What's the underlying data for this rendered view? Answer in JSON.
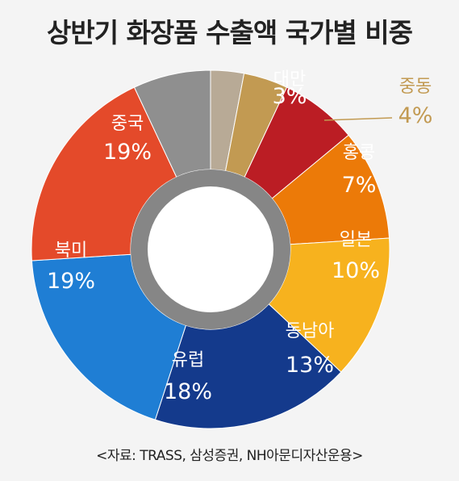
{
  "chart_data": {
    "type": "pie",
    "title": "상반기 화장품 수출액 국가별 비중",
    "unit": "%",
    "slices": [
      {
        "label": "대만",
        "value": 3,
        "display": "3%",
        "color": "#b8aa96"
      },
      {
        "label": "중동",
        "value": 4,
        "display": "4%",
        "color": "#c29a52"
      },
      {
        "label": "홍콩",
        "value": 7,
        "display": "7%",
        "color": "#bb1d24"
      },
      {
        "label": "일본",
        "value": 10,
        "display": "10%",
        "color": "#ec7a08"
      },
      {
        "label": "동남아",
        "value": 13,
        "display": "13%",
        "color": "#f7b21e"
      },
      {
        "label": "유럽",
        "value": 18,
        "display": "18%",
        "color": "#143a8c"
      },
      {
        "label": "북미",
        "value": 19,
        "display": "19%",
        "color": "#1f7ed4"
      },
      {
        "label": "중국",
        "value": 19,
        "display": "19%",
        "color": "#e44a2a"
      },
      {
        "label": "",
        "value": 7,
        "display": "",
        "color": "#8f8f8f"
      }
    ]
  },
  "source": "<자료: TRASS, 삼성증권, NH아문디자산운용>"
}
